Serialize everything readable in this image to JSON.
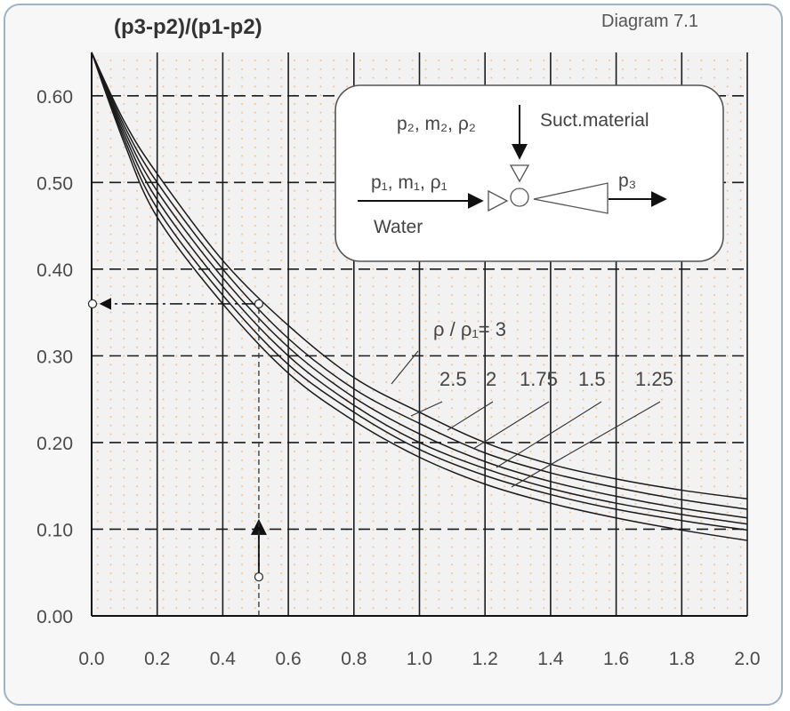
{
  "diagram_label": "Diagram 7.1",
  "chart_data": {
    "type": "line",
    "ylabel": "(p3-p2)/(p1-p2)",
    "xlim": [
      0,
      2.0
    ],
    "ylim": [
      0,
      0.65
    ],
    "x_ticks": [
      "0.0",
      "0.2",
      "0.4",
      "0.6",
      "0.8",
      "1.0",
      "1.2",
      "1.4",
      "1.6",
      "1.8",
      "2.0"
    ],
    "y_ticks": [
      "0.00",
      "0.10",
      "0.20",
      "0.30",
      "0.40",
      "0.50",
      "0.60"
    ],
    "grid": true,
    "series": [
      {
        "name": "3",
        "x": [
          0,
          0.1,
          0.2,
          0.4,
          0.6,
          0.8,
          1.0,
          1.2,
          1.4,
          1.6,
          1.8,
          2.0
        ],
        "y": [
          0.65,
          0.57,
          0.51,
          0.41,
          0.335,
          0.275,
          0.235,
          0.2,
          0.175,
          0.158,
          0.145,
          0.135
        ]
      },
      {
        "name": "2.5",
        "x": [
          0,
          0.1,
          0.2,
          0.4,
          0.6,
          0.8,
          1.0,
          1.2,
          1.4,
          1.6,
          1.8,
          2.0
        ],
        "y": [
          0.65,
          0.565,
          0.5,
          0.4,
          0.32,
          0.262,
          0.222,
          0.188,
          0.165,
          0.148,
          0.134,
          0.123
        ]
      },
      {
        "name": "2",
        "x": [
          0,
          0.1,
          0.2,
          0.4,
          0.6,
          0.8,
          1.0,
          1.2,
          1.4,
          1.6,
          1.8,
          2.0
        ],
        "y": [
          0.65,
          0.56,
          0.49,
          0.39,
          0.31,
          0.252,
          0.21,
          0.178,
          0.155,
          0.138,
          0.124,
          0.113
        ]
      },
      {
        "name": "1.75",
        "x": [
          0,
          0.1,
          0.2,
          0.4,
          0.6,
          0.8,
          1.0,
          1.2,
          1.4,
          1.6,
          1.8,
          2.0
        ],
        "y": [
          0.65,
          0.555,
          0.48,
          0.38,
          0.3,
          0.243,
          0.2,
          0.17,
          0.147,
          0.13,
          0.117,
          0.106
        ]
      },
      {
        "name": "1.5",
        "x": [
          0,
          0.1,
          0.2,
          0.4,
          0.6,
          0.8,
          1.0,
          1.2,
          1.4,
          1.6,
          1.8,
          2.0
        ],
        "y": [
          0.65,
          0.55,
          0.47,
          0.37,
          0.29,
          0.235,
          0.192,
          0.162,
          0.14,
          0.123,
          0.11,
          0.099
        ]
      },
      {
        "name": "1.25",
        "x": [
          0,
          0.1,
          0.2,
          0.4,
          0.6,
          0.8,
          1.0,
          1.2,
          1.4,
          1.6,
          1.8,
          2.0
        ],
        "y": [
          0.65,
          0.545,
          0.46,
          0.36,
          0.28,
          0.225,
          0.183,
          0.152,
          0.13,
          0.113,
          0.099,
          0.087
        ]
      }
    ],
    "legend": {
      "first_label": "ρ / ρ₁= 3",
      "labels": [
        "2.5",
        "2",
        "1.75",
        "1.5",
        "1.25"
      ]
    },
    "example": {
      "x": 0.51,
      "y": 0.36,
      "start_y": 0.045
    }
  },
  "inset": {
    "suction_label": "p₂, m₂, ρ₂",
    "suction_name": "Suct.material",
    "water_label": "p₁, m₁, ρ₁",
    "water_name": "Water",
    "outlet_label": "p₃"
  }
}
